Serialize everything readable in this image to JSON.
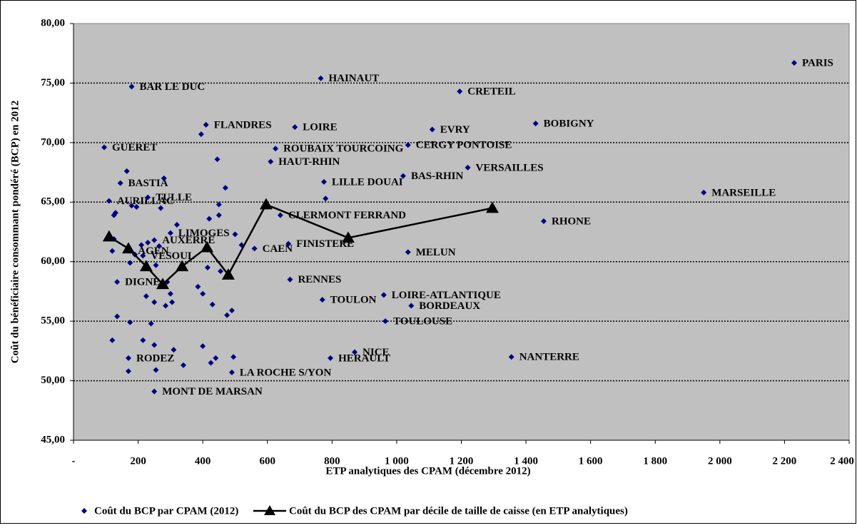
{
  "chart_data": {
    "type": "scatter",
    "x_label": "ETP analytiques des CPAM (décembre 2012)",
    "y_label": "Coût du bénéficiaire consommant pondéré (BCP) en 2012",
    "xlim": [
      0,
      2400
    ],
    "ylim": [
      45,
      80
    ],
    "xticks": [
      {
        "value": 0,
        "label": "-"
      },
      200,
      400,
      600,
      800,
      {
        "value": 1000,
        "label": "1 000"
      },
      {
        "value": 1200,
        "label": "1 200"
      },
      {
        "value": 1400,
        "label": "1 400"
      },
      {
        "value": 1600,
        "label": "1 600"
      },
      {
        "value": 1800,
        "label": "1 800"
      },
      {
        "value": 2000,
        "label": "2 000"
      },
      {
        "value": 2200,
        "label": "2 200"
      },
      {
        "value": 2400,
        "label": "2 400"
      }
    ],
    "yticks": [
      {
        "value": 45,
        "label": "45,00"
      },
      {
        "value": 50,
        "label": "50,00"
      },
      {
        "value": 55,
        "label": "55,00"
      },
      {
        "value": 60,
        "label": "60,00"
      },
      {
        "value": 65,
        "label": "65,00"
      },
      {
        "value": 70,
        "label": "70,00"
      },
      {
        "value": 75,
        "label": "75,00"
      },
      {
        "value": 80,
        "label": "80,00"
      }
    ],
    "grid": true,
    "legend": "bottom",
    "series": [
      {
        "name": "Coût du BCP par CPAM (2012)",
        "type": "scatter",
        "color": "#000080",
        "x": [
          2230,
          765,
          1195,
          180,
          410,
          685,
          1110,
          1430,
          95,
          1035,
          625,
          610,
          1220,
          1020,
          775,
          145,
          110,
          1950,
          230,
          1455,
          300,
          640,
          560,
          665,
          250,
          215,
          175,
          1035,
          670,
          135,
          770,
          960,
          1045,
          965,
          795,
          870,
          170,
          490,
          1355,
          250,
          125,
          130,
          120,
          125,
          135,
          120,
          165,
          180,
          195,
          175,
          170,
          175,
          190,
          210,
          215,
          225,
          230,
          240,
          250,
          250,
          255,
          255,
          265,
          270,
          280,
          285,
          290,
          300,
          305,
          310,
          320,
          340,
          385,
          395,
          400,
          400,
          415,
          420,
          425,
          430,
          440,
          445,
          450,
          450,
          455,
          470,
          475,
          490,
          495,
          500,
          520,
          780
        ],
        "values": [
          76.7,
          75.4,
          74.3,
          74.7,
          71.5,
          71.3,
          71.1,
          71.6,
          69.6,
          69.8,
          69.5,
          68.4,
          67.9,
          67.2,
          66.7,
          66.6,
          65.1,
          65.8,
          65.4,
          63.4,
          62.4,
          63.9,
          61.1,
          61.5,
          61.8,
          60.5,
          60.9,
          60.8,
          58.5,
          58.3,
          56.8,
          57.2,
          56.3,
          55.0,
          51.9,
          52.4,
          51.9,
          50.7,
          52.0,
          49.1,
          63.9,
          64.1,
          60.9,
          61.9,
          55.4,
          53.4,
          67.6,
          64.7,
          64.6,
          54.9,
          50.8,
          59.9,
          60.6,
          61.4,
          53.4,
          57.1,
          61.6,
          54.8,
          56.6,
          53.0,
          50.9,
          59.7,
          61.3,
          64.5,
          67.0,
          56.3,
          58.3,
          57.3,
          56.6,
          52.6,
          63.1,
          51.3,
          57.9,
          70.7,
          57.3,
          52.9,
          59.5,
          63.6,
          51.5,
          56.4,
          51.9,
          68.6,
          64.8,
          63.9,
          59.2,
          66.2,
          55.5,
          55.9,
          52.0,
          62.3,
          61.4,
          65.3
        ],
        "labels": [
          "PARIS",
          "HAINAUT",
          "CRETEIL",
          "BAR LE DUC",
          "FLANDRES",
          "LOIRE",
          "EVRY",
          "BOBIGNY",
          "GUERET",
          "CERGY PONTOISE",
          "ROUBAIX TOURCOING",
          "HAUT-RHIN",
          "VERSAILLES",
          "BAS-RHIN",
          "LILLE DOUAI",
          "BASTIA",
          "AURILLAC",
          "MARSEILLE",
          "TULLE",
          "RHONE",
          "LIMOGES",
          "CLERMONT FERRAND",
          "CAEN",
          "FINISTERE",
          "AUXERRE",
          "VESOUL",
          "AGEN",
          "MELUN",
          "RENNES",
          "DIGNE",
          "TOULON",
          "LOIRE-ATLANTIQUE",
          "BORDEAUX",
          "TOULOUSE",
          "HERAULT",
          "NICE",
          "RODEZ",
          "LA ROCHE S/YON",
          "NANTERRE",
          "MONT DE MARSAN",
          null,
          null,
          null,
          null,
          null,
          null,
          null,
          null,
          null,
          null,
          null,
          null,
          null,
          null,
          null,
          null,
          null,
          null,
          null,
          null,
          null,
          null,
          null,
          null,
          null,
          null,
          null,
          null,
          null,
          null,
          null,
          null,
          null,
          null,
          null,
          null,
          null,
          null,
          null,
          null,
          null,
          null,
          null,
          null,
          null,
          null,
          null,
          null,
          null,
          null,
          null,
          null
        ]
      },
      {
        "name": "Coût du BCP des CPAM par décile de taille de caisse (en ETP analytiques)",
        "type": "line",
        "color": "#000000",
        "x": [
          110,
          170,
          225,
          276,
          336,
          413,
          479,
          596,
          850,
          1296
        ],
        "values": [
          62.1,
          61.1,
          59.6,
          58.1,
          59.6,
          61.2,
          58.9,
          64.8,
          62.0,
          64.5
        ]
      }
    ]
  }
}
